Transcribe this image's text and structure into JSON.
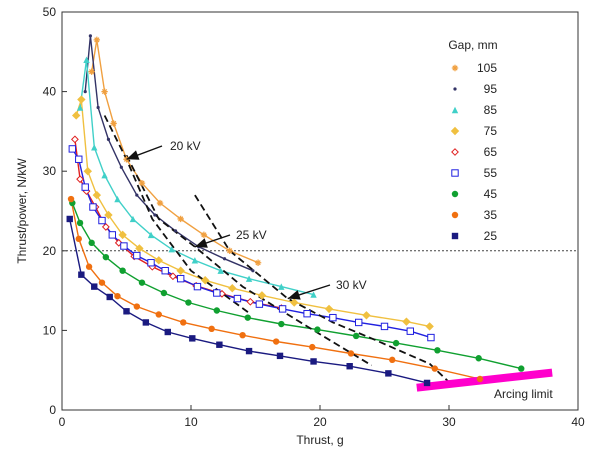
{
  "chart_data": {
    "type": "scatter",
    "xlabel": "Thrust, g",
    "ylabel": "Thrust/power, N/kW",
    "xlim": [
      0,
      40
    ],
    "ylim": [
      0,
      50
    ],
    "xticks": [
      0,
      10,
      20,
      30,
      40
    ],
    "yticks": [
      0,
      10,
      20,
      30,
      40,
      50
    ],
    "grid": false,
    "legend": {
      "title": "Gap, mm",
      "placement": "top-right"
    },
    "reference_line": {
      "y": 20,
      "style": "dotted"
    },
    "series": [
      {
        "name": "105",
        "color": "#f0a040",
        "marker": "star",
        "x": [
          2.3,
          2.7,
          3.3,
          4.0,
          5.0,
          6.2,
          7.6,
          9.2,
          11.0,
          13.0,
          15.2
        ],
        "y": [
          42.5,
          46.5,
          40,
          36,
          31.5,
          28.5,
          26,
          24,
          22,
          20,
          18.5
        ]
      },
      {
        "name": "95",
        "color": "#333366",
        "marker": "dot",
        "x": [
          1.8,
          2.2,
          2.8,
          3.6,
          4.6,
          5.8,
          7.2,
          8.8,
          10.6,
          12.6,
          14.8
        ],
        "y": [
          40,
          47,
          38,
          34,
          30.5,
          27,
          24.5,
          22.5,
          20.5,
          19,
          17.5
        ]
      },
      {
        "name": "85",
        "color": "#40d0c8",
        "marker": "triangle",
        "x": [
          1.4,
          1.9,
          2.5,
          3.3,
          4.3,
          5.5,
          6.9,
          8.5,
          10.3,
          12.3,
          14.5,
          17.0,
          19.5
        ],
        "y": [
          38,
          44,
          33,
          29.5,
          26.5,
          24,
          22,
          20.2,
          18.8,
          17.5,
          16.5,
          15.5,
          14.5
        ]
      },
      {
        "name": "75",
        "color": "#f0c040",
        "marker": "diamond",
        "x": [
          1.1,
          1.5,
          2.0,
          2.7,
          3.6,
          4.7,
          6.0,
          7.5,
          9.2,
          11.1,
          13.2,
          15.5,
          18.0,
          20.7,
          23.6,
          26.7,
          28.5
        ],
        "y": [
          37,
          39,
          30,
          27,
          24.5,
          22,
          20.3,
          18.8,
          17.5,
          16.3,
          15.3,
          14.4,
          13.5,
          12.7,
          11.9,
          11.1,
          10.5
        ]
      },
      {
        "name": "65",
        "color": "#e02020",
        "marker": "open-diamond",
        "x": [
          1.0,
          1.4,
          1.9,
          2.6,
          3.4,
          4.4,
          5.6,
          7.0,
          8.6,
          10.4,
          12.4,
          14.6,
          17.0
        ],
        "y": [
          34,
          29,
          27.5,
          25.5,
          23,
          21,
          19.3,
          18,
          16.8,
          15.6,
          14.6,
          13.6,
          12.8
        ]
      },
      {
        "name": "55",
        "color": "#2020e0",
        "marker": "open-square",
        "x": [
          0.8,
          1.3,
          1.8,
          2.4,
          3.1,
          3.9,
          4.8,
          5.8,
          6.9,
          8.0,
          9.2,
          10.5,
          12.0,
          13.6,
          15.3,
          17.1,
          19.0,
          21.0,
          23.0,
          25.0,
          27.0,
          28.6
        ],
        "y": [
          32.8,
          31.5,
          28,
          25.5,
          23.8,
          22,
          20.6,
          19.4,
          18.5,
          17.5,
          16.5,
          15.5,
          14.7,
          14,
          13.3,
          12.7,
          12.1,
          11.6,
          11,
          10.5,
          9.9,
          9.1
        ]
      },
      {
        "name": "45",
        "color": "#10a030",
        "marker": "circle",
        "x": [
          0.8,
          1.4,
          2.3,
          3.4,
          4.7,
          6.2,
          7.9,
          9.8,
          12.0,
          14.4,
          17.0,
          19.8,
          22.8,
          25.9,
          29.1,
          32.3,
          35.6
        ],
        "y": [
          26,
          23.5,
          21,
          19.2,
          17.5,
          16,
          14.7,
          13.5,
          12.5,
          11.6,
          10.8,
          10.1,
          9.3,
          8.4,
          7.5,
          6.5,
          5.2
        ]
      },
      {
        "name": "35",
        "color": "#f07010",
        "marker": "circle",
        "x": [
          0.7,
          1.3,
          2.1,
          3.1,
          4.3,
          5.8,
          7.5,
          9.4,
          11.6,
          14.0,
          16.6,
          19.4,
          22.4,
          25.6,
          28.9,
          32.4
        ],
        "y": [
          26.5,
          21.5,
          18,
          16,
          14.3,
          13,
          12,
          11,
          10.2,
          9.4,
          8.6,
          7.9,
          7.1,
          6.3,
          5.2,
          3.9
        ]
      },
      {
        "name": "25",
        "color": "#1a1a80",
        "marker": "square",
        "x": [
          0.6,
          1.5,
          2.5,
          3.7,
          5.0,
          6.5,
          8.2,
          10.1,
          12.2,
          14.5,
          16.9,
          19.5,
          22.3,
          25.3,
          28.3
        ],
        "y": [
          24,
          17,
          15.5,
          14.2,
          12.4,
          11,
          9.8,
          9,
          8.2,
          7.4,
          6.8,
          6.1,
          5.5,
          4.6,
          3.4
        ]
      }
    ],
    "annotations": [
      {
        "text": "20 kV",
        "arrow_to": [
          5.0,
          31.5
        ]
      },
      {
        "text": "25 kV",
        "arrow_to": [
          10.3,
          20.5
        ]
      },
      {
        "text": "30 kV",
        "arrow_to": [
          17.5,
          14.0
        ]
      },
      {
        "text": "Arcing limit"
      }
    ],
    "voltage_lines": [
      {
        "label": "20 kV",
        "x": [
          3.3,
          5.0,
          7.0,
          10.0,
          14.5
        ],
        "y": [
          37,
          31.5,
          24,
          17.5,
          12.2
        ]
      },
      {
        "label": "25 kV",
        "x": [
          5.0,
          7.5,
          10.3,
          14.0,
          19.0,
          24.0
        ],
        "y": [
          32,
          24,
          20.5,
          15.5,
          10.5,
          5.6
        ]
      },
      {
        "label": "30 kV",
        "x": [
          10.3,
          13.0,
          17.5,
          21.0,
          24.0,
          28.5,
          30.0
        ],
        "y": [
          27,
          20,
          14,
          11,
          9,
          5.8,
          3.5
        ]
      }
    ],
    "arcing_limit": {
      "x": [
        27.5,
        38
      ],
      "y": [
        2.8,
        4.7
      ],
      "color": "#ff00cc"
    }
  }
}
